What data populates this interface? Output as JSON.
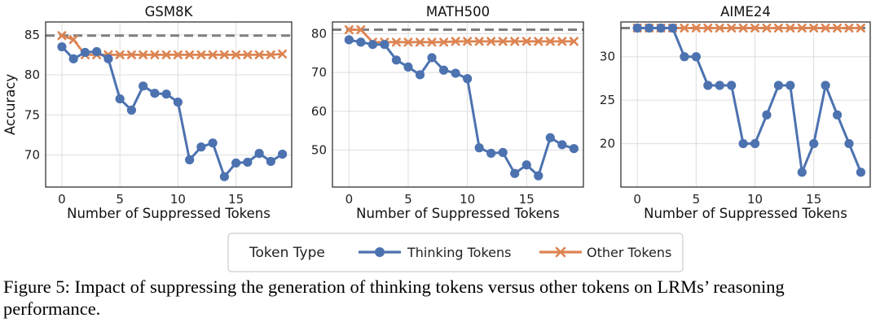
{
  "chart_data": [
    {
      "type": "line",
      "title": "GSM8K",
      "xlabel": "Number of Suppressed Tokens",
      "ylabel": "Accuracy",
      "xlim": [
        -1.4,
        19.8
      ],
      "ylim": [
        66.0,
        86.6
      ],
      "xticks": [
        0,
        5,
        10,
        15
      ],
      "yticks": [
        70,
        75,
        80,
        85
      ],
      "grid": true,
      "baseline": 84.9,
      "x": [
        0,
        1,
        2,
        3,
        4,
        5,
        6,
        7,
        8,
        9,
        10,
        11,
        12,
        13,
        14,
        15,
        16,
        17,
        18,
        19
      ],
      "series": [
        {
          "name": "Thinking Tokens",
          "values": [
            83.5,
            82.0,
            82.8,
            82.9,
            82.0,
            77.0,
            75.6,
            78.6,
            77.7,
            77.6,
            76.6,
            69.4,
            71.0,
            71.5,
            67.3,
            69.0,
            69.1,
            70.2,
            69.2,
            70.1
          ]
        },
        {
          "name": "Other Tokens",
          "values": [
            84.9,
            84.4,
            82.5,
            82.5,
            82.5,
            82.5,
            82.5,
            82.5,
            82.5,
            82.5,
            82.5,
            82.5,
            82.5,
            82.5,
            82.5,
            82.5,
            82.5,
            82.5,
            82.5,
            82.6
          ]
        }
      ]
    },
    {
      "type": "line",
      "title": "MATH500",
      "xlabel": "Number of Suppressed Tokens",
      "ylabel": "",
      "xlim": [
        -1.4,
        19.8
      ],
      "ylim": [
        40.5,
        83.0
      ],
      "xticks": [
        0,
        5,
        10,
        15
      ],
      "yticks": [
        50,
        60,
        70,
        80
      ],
      "grid": true,
      "baseline": 81.0,
      "x": [
        0,
        1,
        2,
        3,
        4,
        5,
        6,
        7,
        8,
        9,
        10,
        11,
        12,
        13,
        14,
        15,
        16,
        17,
        18,
        19
      ],
      "series": [
        {
          "name": "Thinking Tokens",
          "values": [
            78.4,
            77.8,
            77.2,
            77.2,
            73.2,
            71.4,
            69.4,
            73.8,
            70.6,
            69.8,
            68.4,
            50.6,
            49.2,
            49.4,
            44.0,
            46.2,
            43.4,
            53.2,
            51.4,
            50.4
          ]
        },
        {
          "name": "Other Tokens",
          "values": [
            81.0,
            81.0,
            77.8,
            77.8,
            77.8,
            77.8,
            77.8,
            77.8,
            77.8,
            78.0,
            78.0,
            78.0,
            78.0,
            78.0,
            78.0,
            78.0,
            78.0,
            78.0,
            78.0,
            78.0
          ]
        }
      ]
    },
    {
      "type": "line",
      "title": "AIME24",
      "xlabel": "Number of Suppressed Tokens",
      "ylabel": "",
      "xlim": [
        -1.4,
        19.8
      ],
      "ylim": [
        15.0,
        34.0
      ],
      "xticks": [
        0,
        5,
        10,
        15
      ],
      "yticks": [
        20,
        25,
        30
      ],
      "grid": true,
      "baseline": 33.3,
      "x": [
        0,
        1,
        2,
        3,
        4,
        5,
        6,
        7,
        8,
        9,
        10,
        11,
        12,
        13,
        14,
        15,
        16,
        17,
        18,
        19
      ],
      "series": [
        {
          "name": "Thinking Tokens",
          "values": [
            33.3,
            33.3,
            33.3,
            33.3,
            30.0,
            30.0,
            26.7,
            26.7,
            26.7,
            20.0,
            20.0,
            23.3,
            26.7,
            26.7,
            16.7,
            20.0,
            26.7,
            23.3,
            20.0,
            16.7
          ]
        },
        {
          "name": "Other Tokens",
          "values": [
            33.3,
            33.3,
            33.3,
            33.3,
            33.3,
            33.3,
            33.3,
            33.3,
            33.3,
            33.3,
            33.3,
            33.3,
            33.3,
            33.3,
            33.3,
            33.3,
            33.3,
            33.3,
            33.3,
            33.3
          ]
        }
      ]
    }
  ],
  "legend": {
    "title": "Token Type",
    "placement": "bottom-center",
    "items": [
      "Thinking Tokens",
      "Other Tokens"
    ]
  },
  "colors": {
    "thinking": "#4c72b0",
    "other": "#dd8452",
    "baseline": "#7f7f7f",
    "grid": "#dddddd",
    "frame": "#333333"
  },
  "caption": "Figure 5: Impact of suppressing the generation of thinking tokens versus other tokens on LRMs’ reasoning performance."
}
